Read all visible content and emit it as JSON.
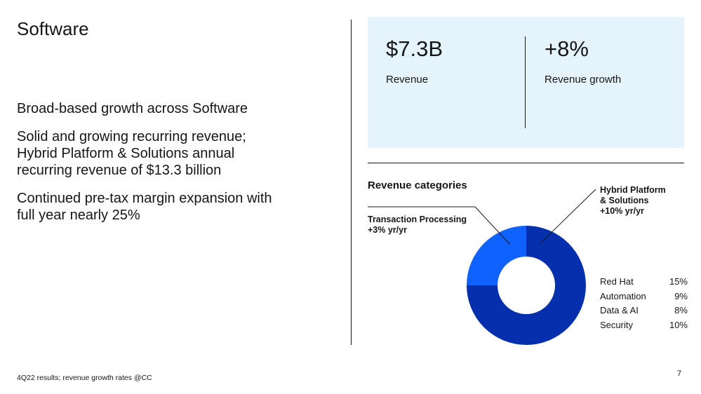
{
  "title": "Software",
  "bullets": [
    "Broad-based growth across Software",
    "Solid and growing recurring revenue; Hybrid Platform & Solutions annual recurring revenue of $13.3 billion",
    "Continued pre-tax margin expansion with full year nearly 25%"
  ],
  "kpis": [
    {
      "value": "$7.3B",
      "label": "Revenue"
    },
    {
      "value": "+8%",
      "label": "Revenue growth"
    }
  ],
  "chart_title": "Revenue categories",
  "chart_data": {
    "type": "pie",
    "title": "Revenue categories",
    "slices": [
      {
        "name": "Hybrid Platform & Solutions",
        "growth": "+10% yr/yr",
        "value": 75,
        "color": "#0530ad"
      },
      {
        "name": "Transaction Processing",
        "growth": "+3% yr/yr",
        "value": 25,
        "color": "#0f62fe"
      }
    ],
    "legend": [
      {
        "name": "Red Hat",
        "value": "15%"
      },
      {
        "name": "Automation",
        "value": "9%"
      },
      {
        "name": "Data & AI",
        "value": "8%"
      },
      {
        "name": "Security",
        "value": "10%"
      }
    ],
    "legend_position": "right"
  },
  "callouts": {
    "hybrid": "Hybrid Platform\n& Solutions\n+10% yr/yr",
    "transaction": "Transaction Processing\n+3% yr/yr"
  },
  "footer": "4Q22 results; revenue growth rates @CC",
  "page_number": "7"
}
